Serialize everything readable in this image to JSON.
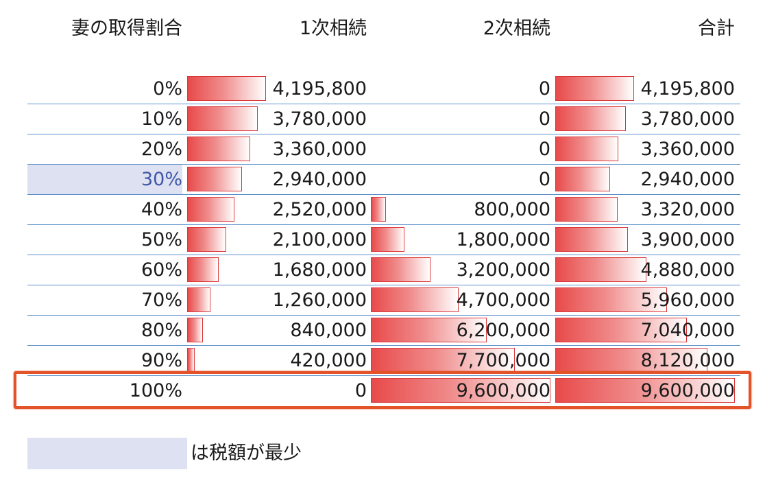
{
  "table": {
    "headers": {
      "ratio": "妻の取得割合",
      "first": "1次相続",
      "second": "2次相続",
      "total": "合計"
    },
    "max_value": 9600000,
    "min_tax_row_index": 3,
    "highlighted_row_index": 10,
    "rows": [
      {
        "ratio": "0%",
        "first": "4,195,800",
        "second": "0",
        "total": "4,195,800",
        "first_value": 4195800,
        "second_value": 0,
        "total_value": 4195800
      },
      {
        "ratio": "10%",
        "first": "3,780,000",
        "second": "0",
        "total": "3,780,000",
        "first_value": 3780000,
        "second_value": 0,
        "total_value": 3780000
      },
      {
        "ratio": "20%",
        "first": "3,360,000",
        "second": "0",
        "total": "3,360,000",
        "first_value": 3360000,
        "second_value": 0,
        "total_value": 3360000
      },
      {
        "ratio": "30%",
        "first": "2,940,000",
        "second": "0",
        "total": "2,940,000",
        "first_value": 2940000,
        "second_value": 0,
        "total_value": 2940000
      },
      {
        "ratio": "40%",
        "first": "2,520,000",
        "second": "800,000",
        "total": "3,320,000",
        "first_value": 2520000,
        "second_value": 800000,
        "total_value": 3320000
      },
      {
        "ratio": "50%",
        "first": "2,100,000",
        "second": "1,800,000",
        "total": "3,900,000",
        "first_value": 2100000,
        "second_value": 1800000,
        "total_value": 3900000
      },
      {
        "ratio": "60%",
        "first": "1,680,000",
        "second": "3,200,000",
        "total": "4,880,000",
        "first_value": 1680000,
        "second_value": 3200000,
        "total_value": 4880000
      },
      {
        "ratio": "70%",
        "first": "1,260,000",
        "second": "4,700,000",
        "total": "5,960,000",
        "first_value": 1260000,
        "second_value": 4700000,
        "total_value": 5960000
      },
      {
        "ratio": "80%",
        "first": "840,000",
        "second": "6,200,000",
        "total": "7,040,000",
        "first_value": 840000,
        "second_value": 6200000,
        "total_value": 7040000
      },
      {
        "ratio": "90%",
        "first": "420,000",
        "second": "7,700,000",
        "total": "8,120,000",
        "first_value": 420000,
        "second_value": 7700000,
        "total_value": 8120000
      },
      {
        "ratio": "100%",
        "first": "0",
        "second": "9,600,000",
        "total": "9,600,000",
        "first_value": 0,
        "second_value": 9600000,
        "total_value": 9600000
      }
    ]
  },
  "legend": {
    "text": "は税額が最少",
    "swatch_color": "#dde1f1"
  },
  "colors": {
    "bar_fill": "#e84a4a",
    "bar_border": "#d9383a",
    "highlight_border": "#e2532a",
    "row_separator": "#5b8fc9",
    "min_text": "#3f57a8"
  }
}
